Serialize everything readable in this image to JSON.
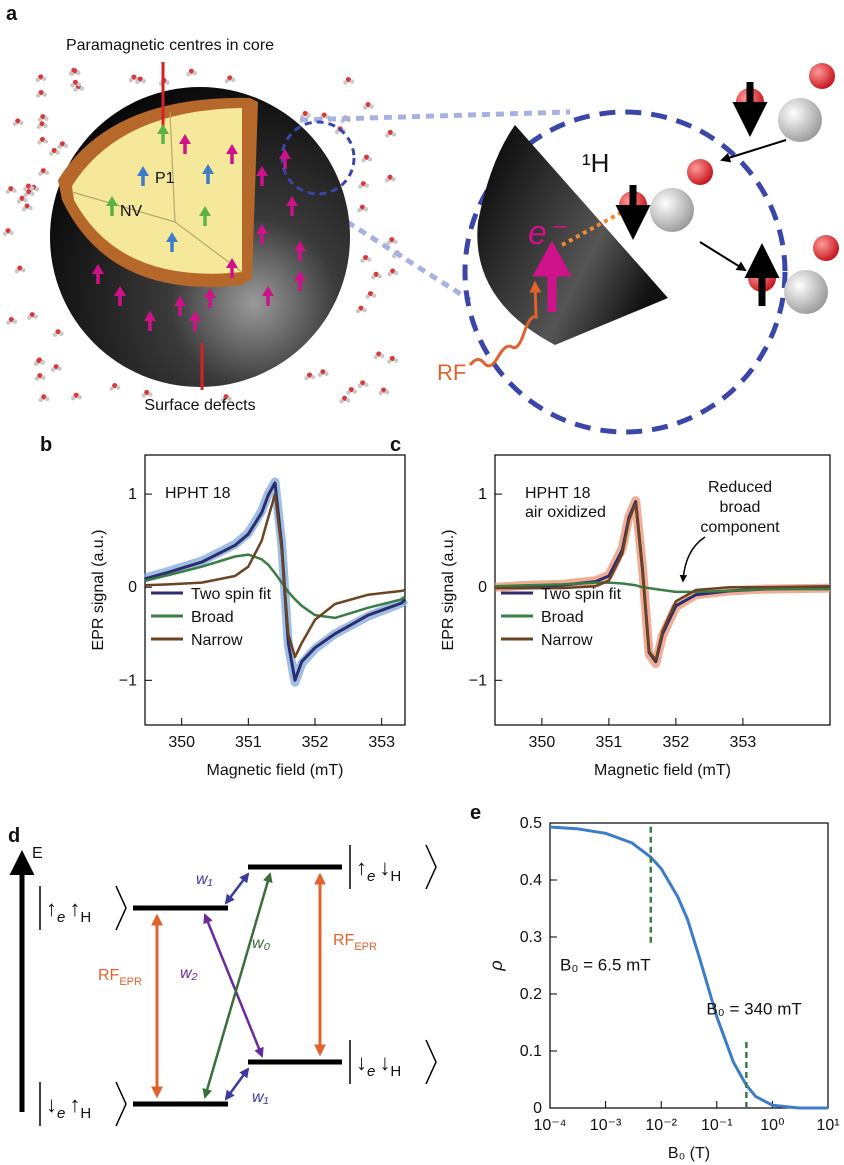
{
  "panel_a": {
    "label": "a",
    "core": "Paramagnetic centres in core",
    "p1": "P1",
    "nv": "NV",
    "surface": "Surface defects",
    "proton": "¹H",
    "electron": "e⁻",
    "rf": "RF"
  },
  "chart_data": [
    {
      "type": "line",
      "panel": "b",
      "annotation": [
        "HPHT 18"
      ],
      "xlabel": "Magnetic field (mT)",
      "ylabel": "EPR signal (a.u.)",
      "x": [
        349.45,
        349.8,
        350.3,
        350.8,
        351.0,
        351.2,
        351.3,
        351.4,
        351.5,
        351.6,
        351.7,
        351.8,
        352.0,
        352.3,
        352.8,
        353.3,
        353.35
      ],
      "series": [
        {
          "color": "#7ea9d9",
          "values": [
            0.1,
            0.17,
            0.28,
            0.46,
            0.58,
            0.82,
            1.0,
            1.13,
            0.47,
            -0.62,
            -1.02,
            -0.82,
            -0.66,
            -0.5,
            -0.31,
            -0.17,
            -0.13
          ]
        },
        {
          "name": "Two spin fit",
          "color": "#2b2d6e",
          "values": [
            0.09,
            0.16,
            0.27,
            0.45,
            0.57,
            0.8,
            0.99,
            1.12,
            0.45,
            -0.6,
            -1.0,
            -0.8,
            -0.65,
            -0.5,
            -0.3,
            -0.17,
            -0.13
          ]
        },
        {
          "name": "Broad",
          "color": "#3a7d44",
          "values": [
            0.07,
            0.13,
            0.22,
            0.33,
            0.35,
            0.3,
            0.24,
            0.15,
            0.05,
            -0.05,
            -0.13,
            -0.2,
            -0.3,
            -0.33,
            -0.22,
            -0.13,
            -0.1
          ]
        },
        {
          "name": "Narrow",
          "color": "#6b4423",
          "values": [
            0.02,
            0.03,
            0.05,
            0.12,
            0.22,
            0.5,
            0.75,
            1.0,
            0.4,
            -0.5,
            -0.75,
            -0.6,
            -0.35,
            -0.18,
            -0.08,
            -0.04,
            -0.03
          ]
        }
      ],
      "xlim": [
        349.45,
        353.35
      ],
      "xticks": [
        350,
        351,
        352,
        353
      ],
      "ylim": [
        -1.48,
        1.42
      ],
      "yticks": [
        {
          "value": -1,
          "label": "−1"
        },
        0,
        1
      ],
      "legend": "lower left"
    },
    {
      "type": "line",
      "panel": "c",
      "annotation": [
        "HPHT 18",
        "air oxidized"
      ],
      "callout": [
        "Reduced",
        "broad",
        "component"
      ],
      "xlabel": "Magnetic field (mT)",
      "ylabel": "EPR signal (a.u.)",
      "x": [
        349.3,
        349.8,
        350.3,
        350.8,
        351.0,
        351.2,
        351.3,
        351.4,
        351.5,
        351.6,
        351.7,
        351.8,
        352.0,
        352.3,
        352.8,
        353.3,
        354.3
      ],
      "series": [
        {
          "color": "#eb9270",
          "values": [
            0.0,
            0.02,
            0.03,
            0.07,
            0.13,
            0.42,
            0.76,
            0.93,
            0.22,
            -0.72,
            -0.82,
            -0.52,
            -0.21,
            -0.08,
            -0.04,
            -0.02,
            -0.01
          ]
        },
        {
          "name": "Two spin fit",
          "color": "#2b2d6e",
          "values": [
            0.0,
            0.01,
            0.02,
            0.06,
            0.12,
            0.4,
            0.75,
            0.92,
            0.2,
            -0.7,
            -0.8,
            -0.5,
            -0.2,
            -0.08,
            -0.04,
            -0.02,
            -0.01
          ]
        },
        {
          "name": "Broad",
          "color": "#3a7d44",
          "values": [
            0.01,
            0.02,
            0.03,
            0.05,
            0.05,
            0.04,
            0.03,
            0.02,
            0.0,
            -0.01,
            -0.02,
            -0.03,
            -0.05,
            -0.05,
            -0.04,
            -0.02,
            -0.02
          ]
        },
        {
          "name": "Narrow",
          "color": "#6b4423",
          "values": [
            -0.01,
            -0.01,
            -0.01,
            0.01,
            0.07,
            0.36,
            0.72,
            0.9,
            0.2,
            -0.69,
            -0.78,
            -0.47,
            -0.15,
            -0.03,
            0.0,
            0.0,
            0.01
          ]
        }
      ],
      "xlim": [
        349.3,
        354.3
      ],
      "xticks": [
        350,
        351,
        352,
        353
      ],
      "ylim": [
        -1.48,
        1.42
      ],
      "yticks": [
        {
          "value": -1,
          "label": "−1"
        },
        0,
        1
      ],
      "legend": "lower left"
    },
    {
      "type": "line",
      "panel": "e",
      "xlabel": "B₀ (T)",
      "ylabel": "ρ",
      "log_x": true,
      "x": [
        0.0001,
        0.0003,
        0.001,
        0.003,
        0.0065,
        0.01,
        0.02,
        0.03,
        0.05,
        0.1,
        0.2,
        0.34,
        0.5,
        1,
        3,
        10
      ],
      "series": [
        {
          "color": "#3d7cc9",
          "values": [
            0.493,
            0.49,
            0.482,
            0.465,
            0.44,
            0.42,
            0.37,
            0.33,
            0.26,
            0.16,
            0.08,
            0.04,
            0.02,
            0.005,
            0.0,
            0.0
          ]
        }
      ],
      "markers": [
        {
          "x": 0.0065,
          "ymin": 0.29,
          "ymax": 0.5,
          "label": "B₀ = 6.5 mT"
        },
        {
          "x": 0.34,
          "ymin": 0,
          "ymax": 0.12,
          "label": "B₀ = 340 mT"
        }
      ],
      "marker_color": "#3a7d44",
      "xlim": [
        0.0001,
        10
      ],
      "xticks": [
        {
          "value": 0.0001,
          "label": "10⁻⁴"
        },
        {
          "value": 0.001,
          "label": "10⁻³"
        },
        {
          "value": 0.01,
          "label": "10⁻²"
        },
        {
          "value": 0.1,
          "label": "10⁻¹"
        },
        {
          "value": 1,
          "label": "10⁰"
        },
        {
          "value": 10,
          "label": "10¹"
        }
      ],
      "ylim": [
        0,
        0.5
      ],
      "yticks": [
        0,
        0.1,
        0.2,
        0.3,
        0.4,
        0.5
      ]
    }
  ],
  "panel_d": {
    "label": "d",
    "axis": "E",
    "states": [
      {
        "e_spin": "↑",
        "e_label": "e",
        "h_spin": "↑",
        "h_label": "H"
      },
      {
        "e_spin": "↑",
        "e_label": "e",
        "h_spin": "↓",
        "h_label": "H"
      },
      {
        "e_spin": "↓",
        "e_label": "e",
        "h_spin": "↓",
        "h_label": "H"
      },
      {
        "e_spin": "↓",
        "e_label": "e",
        "h_spin": "↑",
        "h_label": "H"
      }
    ],
    "w1_top": "w₁",
    "w2": "w₂",
    "w0": "w₀",
    "w1_bottom": "w₁",
    "rf_left": {
      "main": "RF",
      "sub": "EPR"
    },
    "rf_right": {
      "main": "RF",
      "sub": "EPR"
    }
  }
}
